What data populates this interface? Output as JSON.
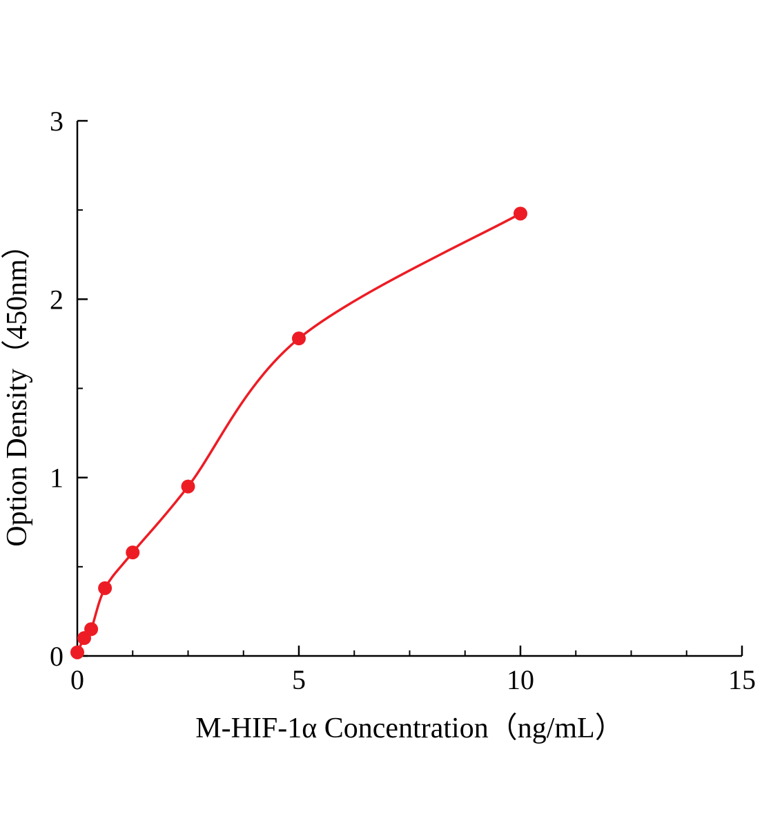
{
  "chart_data": {
    "type": "scatter",
    "title": "",
    "xlabel": "M-HIF-1α Concentration（ng/mL）",
    "ylabel": "Option Density（450nm）",
    "x": [
      0,
      0.156,
      0.313,
      0.625,
      1.25,
      2.5,
      5,
      10
    ],
    "y": [
      0.02,
      0.1,
      0.15,
      0.38,
      0.58,
      0.95,
      1.78,
      2.48
    ],
    "fit_line": true,
    "xlim": [
      0,
      15
    ],
    "ylim": [
      0,
      3
    ],
    "xticks": [
      0,
      5,
      10,
      15
    ],
    "yticks": [
      0,
      1,
      2,
      3
    ],
    "x_minor_step": 1.25,
    "y_minor_step": 0.5,
    "grid": false,
    "legend": "none",
    "point_color": "#ed1c24",
    "line_color": "#ed1c24",
    "axis_color": "#000000",
    "background_color": "#ffffff",
    "marker_radius": 10
  }
}
